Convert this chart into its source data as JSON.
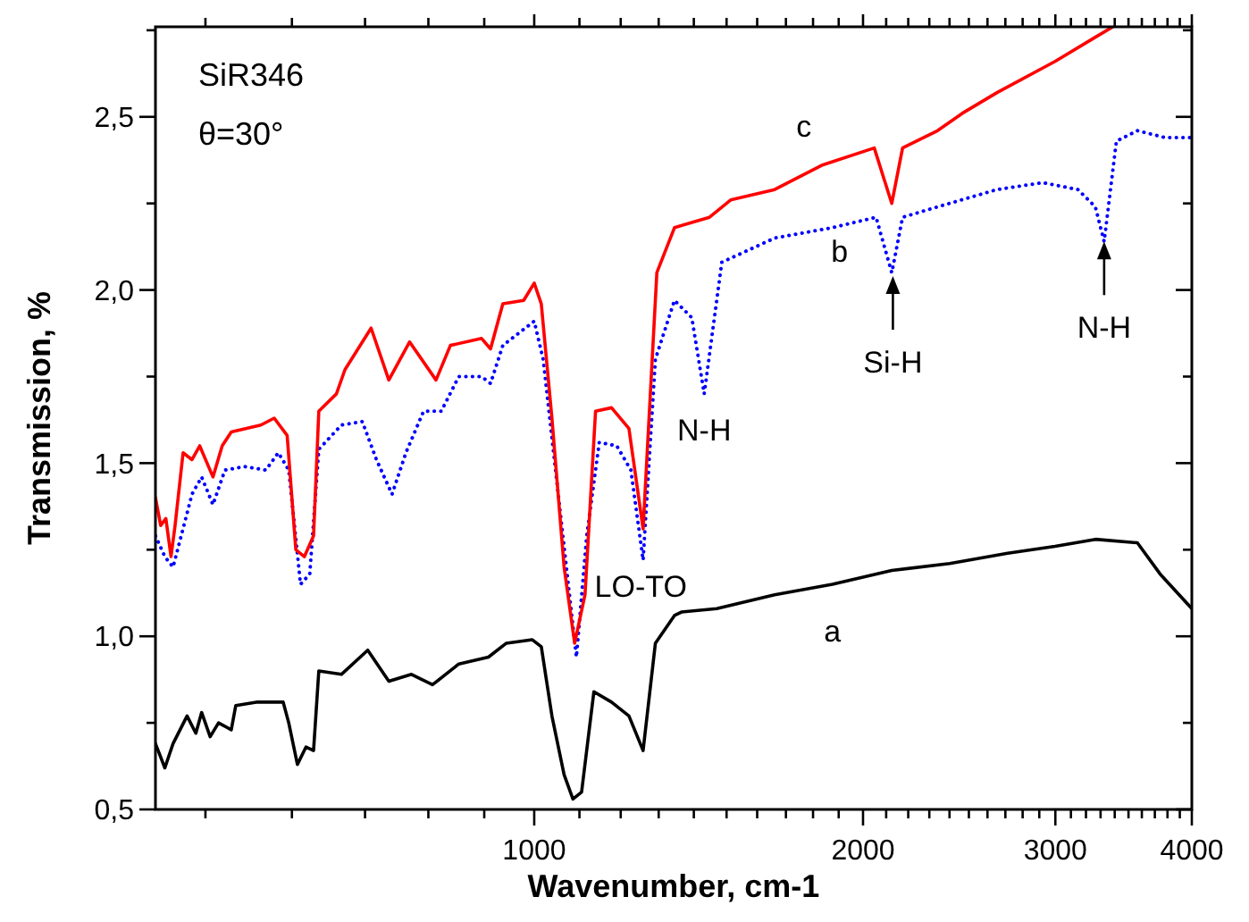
{
  "chart_data": {
    "type": "line",
    "xlabel": "Wavenumber, cm-1",
    "ylabel": "Transmission, %",
    "log": "x",
    "xlim": [
      450,
      4000
    ],
    "ylim": [
      0.5,
      2.76
    ],
    "xticks": [
      {
        "value": 500,
        "label": null
      },
      {
        "value": 600,
        "label": null
      },
      {
        "value": 700,
        "label": null
      },
      {
        "value": 800,
        "label": null
      },
      {
        "value": 900,
        "label": null
      },
      1000,
      {
        "value": 1100,
        "label": null
      },
      {
        "value": 1200,
        "label": null
      },
      {
        "value": 1300,
        "label": null
      },
      {
        "value": 1400,
        "label": null
      },
      {
        "value": 1500,
        "label": null
      },
      {
        "value": 1600,
        "label": null
      },
      {
        "value": 1700,
        "label": null
      },
      {
        "value": 1800,
        "label": null
      },
      {
        "value": 1900,
        "label": null
      },
      2000,
      {
        "value": 2100,
        "label": null
      },
      {
        "value": 2200,
        "label": null
      },
      {
        "value": 2300,
        "label": null
      },
      {
        "value": 2400,
        "label": null
      },
      {
        "value": 2500,
        "label": null
      },
      {
        "value": 2600,
        "label": null
      },
      {
        "value": 2700,
        "label": null
      },
      {
        "value": 2800,
        "label": null
      },
      {
        "value": 2900,
        "label": null
      },
      3000,
      {
        "value": 3100,
        "label": null
      },
      {
        "value": 3200,
        "label": null
      },
      {
        "value": 3300,
        "label": null
      },
      {
        "value": 3400,
        "label": null
      },
      {
        "value": 3500,
        "label": null
      },
      {
        "value": 3600,
        "label": null
      },
      {
        "value": 3700,
        "label": null
      },
      {
        "value": 3800,
        "label": null
      },
      {
        "value": 3900,
        "label": null
      },
      4000
    ],
    "yticks": [
      {
        "value": 0.5,
        "label": "0,5"
      },
      {
        "value": 0.75,
        "label": null
      },
      {
        "value": 1.0,
        "label": "1,0"
      },
      {
        "value": 1.25,
        "label": null
      },
      {
        "value": 1.5,
        "label": "1,5"
      },
      {
        "value": 1.75,
        "label": null
      },
      {
        "value": 2.0,
        "label": "2,0"
      },
      {
        "value": 2.25,
        "label": null
      },
      {
        "value": 2.5,
        "label": "2,5"
      },
      {
        "value": 2.75,
        "label": null
      }
    ],
    "series": [
      {
        "name": "a",
        "color": "#000000",
        "line_style": "solid",
        "x": [
          450,
          459,
          467,
          481,
          490,
          496,
          505,
          514,
          528,
          533,
          558,
          589,
          596,
          607,
          618,
          628,
          635,
          666,
          704,
          736,
          772,
          807,
          853,
          908,
          943,
          996,
          1015,
          1038,
          1065,
          1085,
          1105,
          1134,
          1177,
          1221,
          1258,
          1291,
          1344,
          1364,
          1469,
          1660,
          1875,
          2125,
          2401,
          2713,
          2998,
          3264,
          3566,
          3741,
          4000
        ],
        "values": [
          0.69,
          0.62,
          0.69,
          0.77,
          0.72,
          0.78,
          0.71,
          0.75,
          0.73,
          0.8,
          0.81,
          0.81,
          0.75,
          0.63,
          0.68,
          0.67,
          0.9,
          0.89,
          0.96,
          0.87,
          0.89,
          0.86,
          0.92,
          0.94,
          0.98,
          0.99,
          0.97,
          0.77,
          0.6,
          0.53,
          0.55,
          0.84,
          0.81,
          0.77,
          0.67,
          0.98,
          1.06,
          1.07,
          1.08,
          1.12,
          1.15,
          1.19,
          1.21,
          1.24,
          1.26,
          1.28,
          1.27,
          1.18,
          1.08
        ]
      },
      {
        "name": "b",
        "color": "#0000ff",
        "line_style": "dotted",
        "x": [
          450,
          459,
          467,
          476,
          486,
          496,
          508,
          521,
          543,
          568,
          583,
          596,
          611,
          623,
          635,
          666,
          696,
          717,
          741,
          763,
          792,
          822,
          853,
          895,
          912,
          936,
          1000,
          1019,
          1093,
          1117,
          1147,
          1190,
          1226,
          1258,
          1291,
          1344,
          1394,
          1431,
          1485,
          1660,
          1875,
          2056,
          2125,
          2174,
          2340,
          2653,
          2922,
          3146,
          3264,
          3325,
          3412,
          3566,
          3783,
          4000
        ],
        "values": [
          1.29,
          1.23,
          1.2,
          1.3,
          1.41,
          1.46,
          1.38,
          1.48,
          1.49,
          1.48,
          1.53,
          1.48,
          1.15,
          1.18,
          1.54,
          1.61,
          1.62,
          1.51,
          1.41,
          1.53,
          1.65,
          1.65,
          1.75,
          1.75,
          1.73,
          1.84,
          1.91,
          1.8,
          0.94,
          1.29,
          1.56,
          1.55,
          1.48,
          1.22,
          1.8,
          1.97,
          1.92,
          1.7,
          2.08,
          2.15,
          2.18,
          2.21,
          2.05,
          2.21,
          2.24,
          2.29,
          2.31,
          2.29,
          2.24,
          2.14,
          2.43,
          2.46,
          2.44,
          2.44
        ]
      },
      {
        "name": "c",
        "color": "#ff0000",
        "line_style": "solid",
        "x": [
          450,
          455,
          460,
          465,
          469,
          477,
          486,
          494,
          508,
          518,
          528,
          562,
          578,
          594,
          605,
          616,
          628,
          635,
          659,
          671,
          709,
          736,
          769,
          813,
          838,
          895,
          912,
          936,
          978,
          1000,
          1015,
          1038,
          1065,
          1089,
          1113,
          1138,
          1177,
          1221,
          1258,
          1295,
          1344,
          1447,
          1513,
          1660,
          1833,
          2048,
          2086,
          2125,
          2174,
          2340,
          2465,
          2653,
          2998,
          3264,
          3387
        ],
        "values": [
          1.4,
          1.32,
          1.34,
          1.23,
          1.32,
          1.53,
          1.51,
          1.55,
          1.46,
          1.55,
          1.59,
          1.61,
          1.63,
          1.58,
          1.25,
          1.23,
          1.29,
          1.65,
          1.7,
          1.77,
          1.89,
          1.74,
          1.85,
          1.74,
          1.84,
          1.86,
          1.83,
          1.96,
          1.97,
          2.02,
          1.96,
          1.63,
          1.2,
          0.98,
          1.12,
          1.65,
          1.66,
          1.6,
          1.31,
          2.05,
          2.18,
          2.21,
          2.26,
          2.29,
          2.36,
          2.41,
          2.33,
          2.25,
          2.41,
          2.46,
          2.51,
          2.57,
          2.66,
          2.73,
          2.76
        ]
      }
    ],
    "annotations": [
      "SiR346",
      "θ=30°",
      {
        "text": "LO-TO",
        "x": 1089,
        "y": 0.98
      },
      {
        "text": "N-H",
        "x": 1431,
        "y": 1.7
      },
      {
        "text": "Si-H",
        "x": 2130,
        "y": 2.04
      },
      {
        "text": "N-H",
        "x": 3325,
        "y": 2.14
      }
    ]
  }
}
